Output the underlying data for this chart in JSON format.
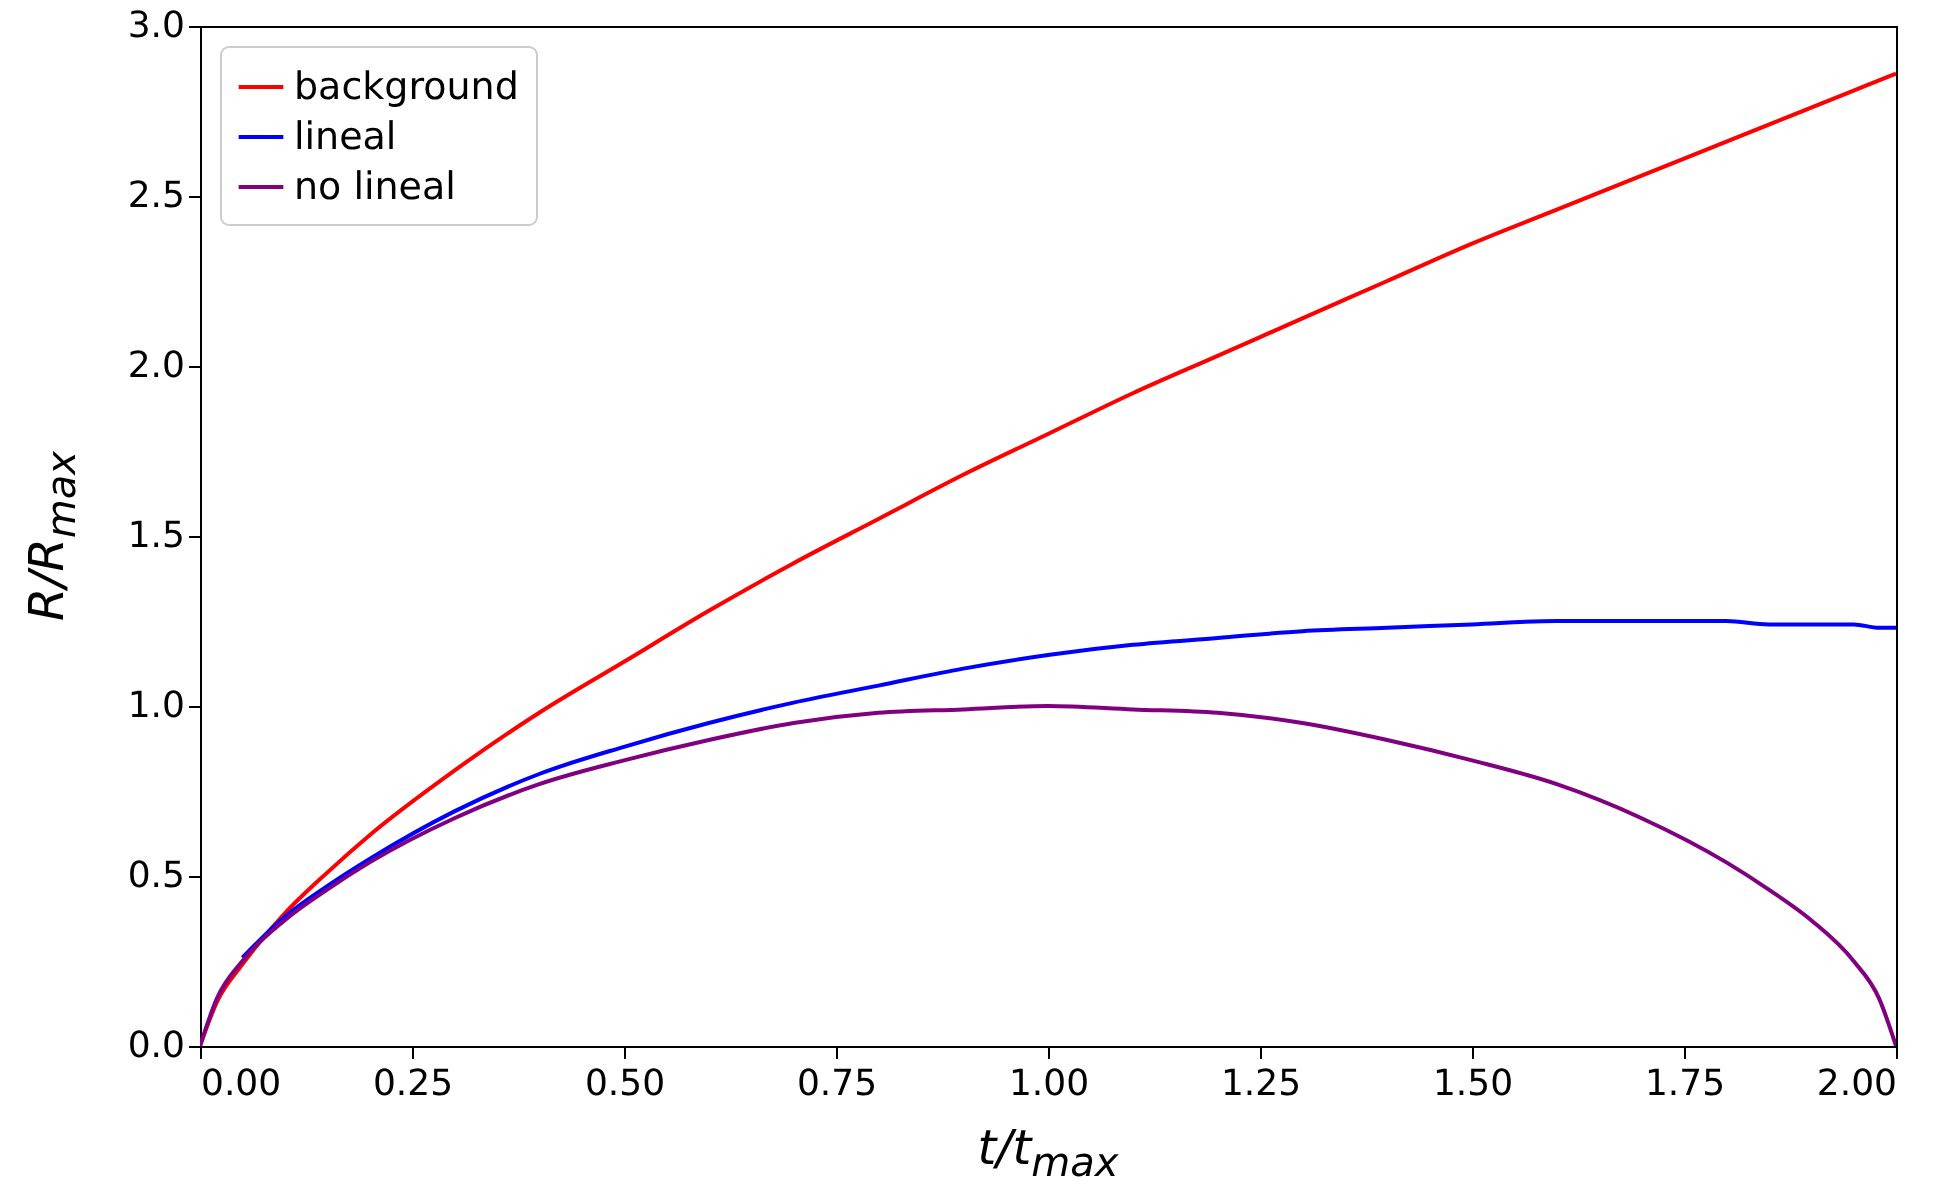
{
  "chart_data": {
    "type": "line",
    "xlabel": "t/t$_{max}$",
    "ylabel": "R/R$_{max}$",
    "x": [
      0,
      0.02,
      0.05,
      0.1,
      0.15,
      0.2,
      0.3,
      0.4,
      0.5,
      0.6,
      0.7,
      0.8,
      0.9,
      1.0,
      1.1,
      1.2,
      1.3,
      1.4,
      1.5,
      1.6,
      1.7,
      1.8,
      1.85,
      1.9,
      1.95,
      1.98,
      2.0
    ],
    "series": [
      {
        "name": "background",
        "color": "#ff0000",
        "values": [
          0,
          0.13,
          0.24,
          0.39,
          0.51,
          0.62,
          0.81,
          0.98,
          1.13,
          1.28,
          1.42,
          1.55,
          1.68,
          1.8,
          1.92,
          2.03,
          2.14,
          2.25,
          2.36,
          2.46,
          2.56,
          2.66,
          2.71,
          2.76,
          2.81,
          2.84,
          2.86
        ]
      },
      {
        "name": "lineal",
        "color": "#0000ff",
        "values": [
          null,
          null,
          0.26,
          0.38,
          0.47,
          0.55,
          0.69,
          0.8,
          0.88,
          0.95,
          1.01,
          1.06,
          1.11,
          1.15,
          1.18,
          1.2,
          1.22,
          1.23,
          1.24,
          1.25,
          1.25,
          1.25,
          1.24,
          1.24,
          1.24,
          1.23,
          1.23
        ]
      },
      {
        "name": "no lineal",
        "color": "#800080",
        "values": [
          0,
          0.14,
          0.25,
          0.37,
          0.46,
          0.54,
          0.67,
          0.77,
          0.84,
          0.9,
          0.95,
          0.98,
          0.99,
          1.0,
          0.99,
          0.98,
          0.95,
          0.9,
          0.84,
          0.77,
          0.67,
          0.54,
          0.46,
          0.37,
          0.25,
          0.14,
          0
        ]
      }
    ],
    "xlim": [
      0,
      2
    ],
    "ylim": [
      0,
      3
    ],
    "xticks": [
      {
        "value": 0,
        "label": "0.00"
      },
      0.25,
      {
        "value": 0.5,
        "label": "0.50"
      },
      0.75,
      {
        "value": 1,
        "label": "1.00"
      },
      1.25,
      {
        "value": 1.5,
        "label": "1.50"
      },
      1.75,
      {
        "value": 2,
        "label": "2.00"
      }
    ],
    "yticks": [
      {
        "value": 0,
        "label": "0.0"
      },
      0.5,
      {
        "value": 1,
        "label": "1.0"
      },
      1.5,
      {
        "value": 2,
        "label": "2.0"
      },
      2.5,
      {
        "value": 3,
        "label": "3.0"
      }
    ],
    "legend": "top left",
    "grid": false
  }
}
